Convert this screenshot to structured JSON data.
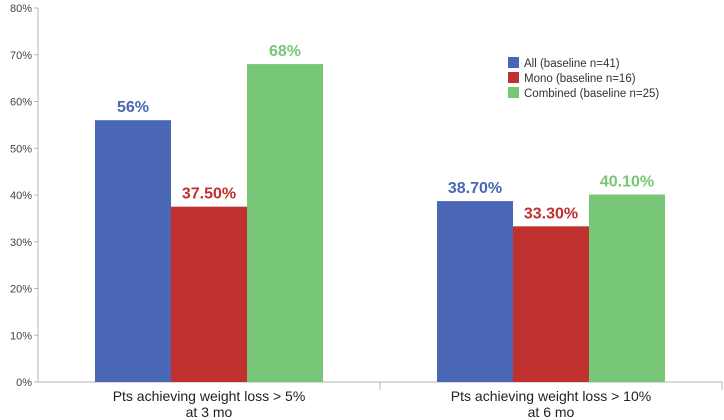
{
  "chart_data": {
    "type": "bar",
    "title": "",
    "xlabel": "",
    "ylabel": "",
    "ylim": [
      0,
      80
    ],
    "y_ticks": [
      "0%",
      "10%",
      "20%",
      "30%",
      "40%",
      "50%",
      "60%",
      "70%",
      "80%"
    ],
    "grid": false,
    "legend_position": "top-right",
    "categories": [
      {
        "line1": "Pts achieving weight loss > 5%",
        "line2": "at 3 mo"
      },
      {
        "line1": "Pts achieving weight loss > 10%",
        "line2": "at 6 mo"
      }
    ],
    "series": [
      {
        "name": "All (baseline n=41)",
        "color": "#4a67b5",
        "values": [
          56,
          38.7
        ],
        "labels": [
          "56%",
          "38.70%"
        ]
      },
      {
        "name": "Mono (baseline n=16)",
        "color": "#c0302f",
        "values": [
          37.5,
          33.3
        ],
        "labels": [
          "37.50%",
          "33.30%"
        ]
      },
      {
        "name": "Combined (baseline n=25)",
        "color": "#78c677",
        "values": [
          68,
          40.1
        ],
        "labels": [
          "68%",
          "40.10%"
        ]
      }
    ]
  }
}
